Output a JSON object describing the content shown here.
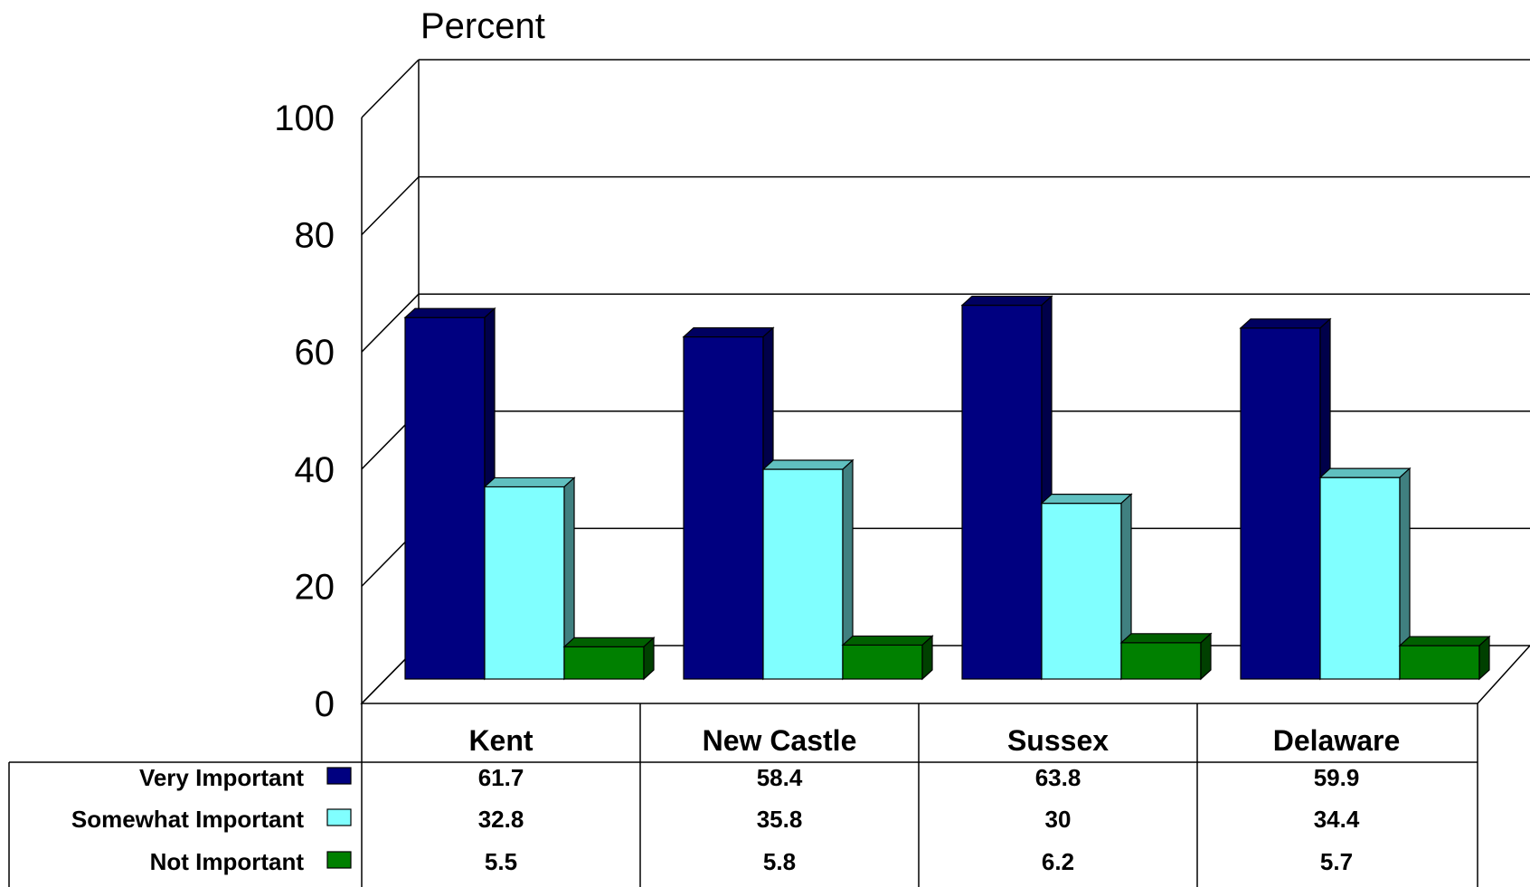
{
  "chart_data": {
    "type": "bar",
    "ylabel": "Percent",
    "ylim": [
      0,
      100
    ],
    "yticks": [
      0,
      20,
      40,
      60,
      80,
      100
    ],
    "grid": true,
    "categories": [
      "Kent",
      "New Castle",
      "Sussex",
      "Delaware"
    ],
    "series": [
      {
        "name": "Very Important",
        "values": [
          61.7,
          58.4,
          63.8,
          59.9
        ],
        "labels": [
          "61.7",
          "58.4",
          "63.8",
          "59.9"
        ],
        "color": "#000080",
        "side": "#00004a",
        "top": "#000060"
      },
      {
        "name": "Somewhat Important",
        "values": [
          32.8,
          35.8,
          30,
          34.4
        ],
        "labels": [
          "32.8",
          "35.8",
          "30",
          "34.4"
        ],
        "color": "#80ffff",
        "side": "#408080",
        "top": "#60c0c0"
      },
      {
        "name": "Not Important",
        "values": [
          5.5,
          5.8,
          6.2,
          5.7
        ],
        "labels": [
          "5.5",
          "5.8",
          "6.2",
          "5.7"
        ],
        "color": "#008000",
        "side": "#004000",
        "top": "#006000"
      }
    ],
    "legend": "data-table"
  }
}
